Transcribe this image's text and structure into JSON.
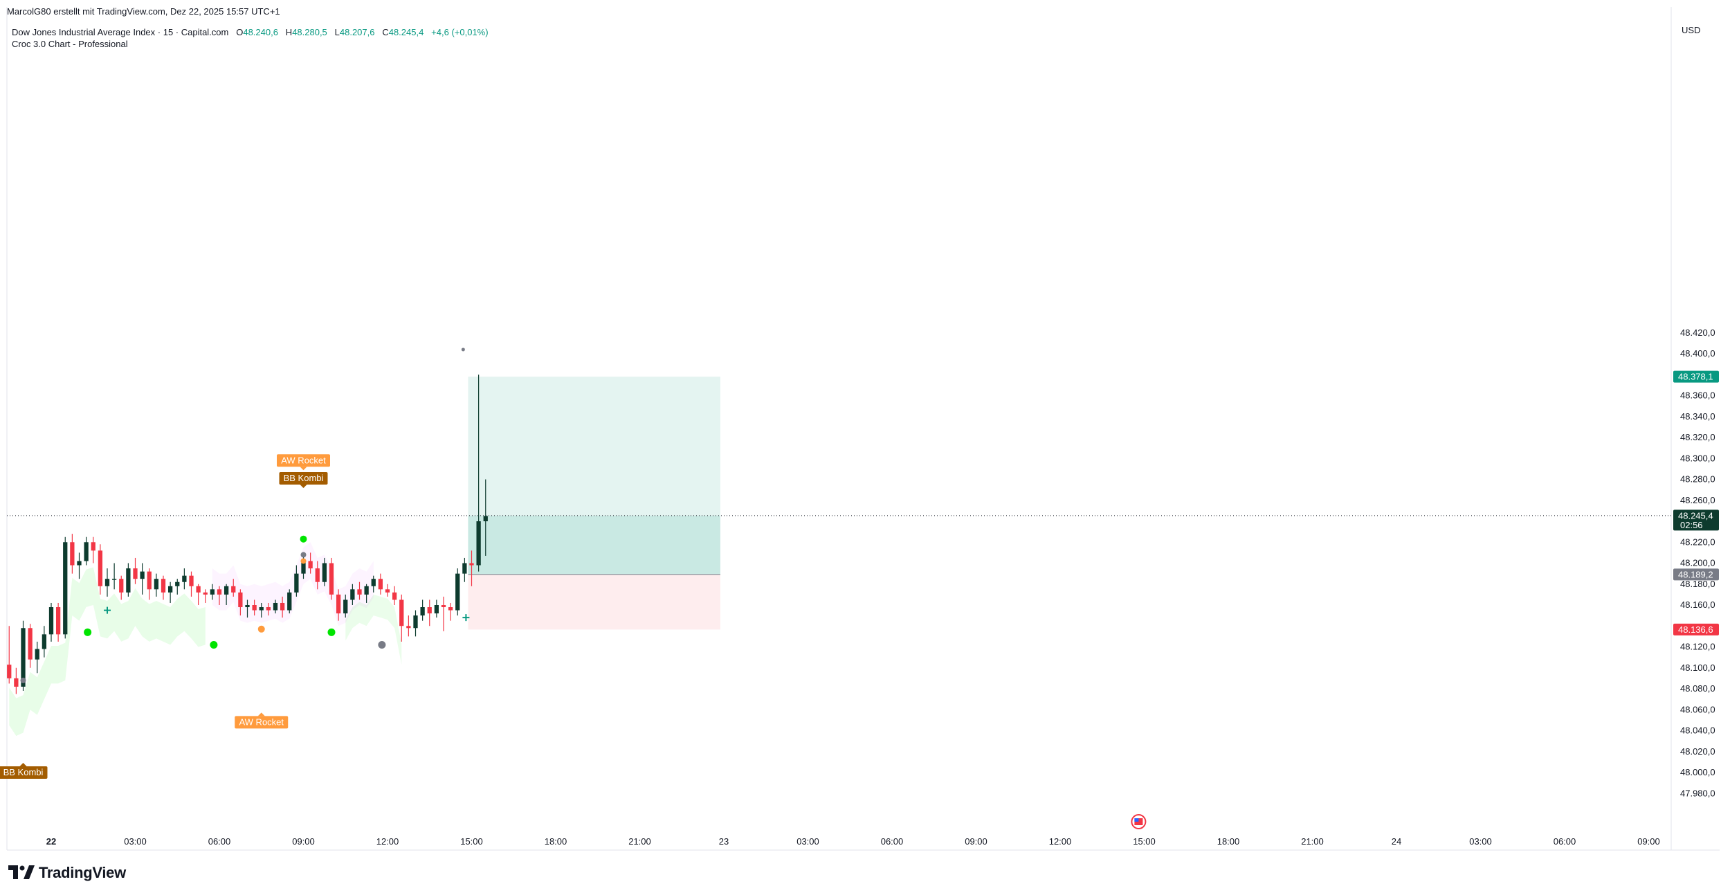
{
  "header": {
    "credit": "MarcolG80 erstellt mit TradingView.com, Dez 22, 2025 15:57 UTC+1"
  },
  "legend": {
    "symbol": "Dow Jones Industrial Average Index · 15 · Capital.com",
    "open_label": "O",
    "open": "48.240,6",
    "high_label": "H",
    "high": "48.280,5",
    "low_label": "L",
    "low": "48.207,6",
    "close_label": "C",
    "close": "48.245,4",
    "change": "+4,6 (+0,01%)",
    "indicator": "Croc 3.0 Chart - Professional"
  },
  "currency": "USD",
  "brand": "TradingView",
  "colors": {
    "up": "#0d3b2e",
    "down": "#f23645",
    "target": "#089981",
    "stop": "#f23645",
    "entry": "#787b86",
    "label_orange": "#ff9b3d",
    "label_brown": "#a35c00",
    "signal_green": "#00e400"
  },
  "chart_data": {
    "type": "candlestick",
    "title": "",
    "xlabel": "",
    "ylabel": "",
    "ylim": [
      47970,
      48430
    ],
    "y_ticks": [
      48420,
      48400,
      48360,
      48340,
      48320,
      48300,
      48280,
      48260,
      48220,
      48200,
      48180,
      48160,
      48120,
      48100,
      48080,
      48060,
      48040,
      48020,
      48000,
      47980
    ],
    "y_tick_labels": [
      "48.420,0",
      "48.400,0",
      "48.360,0",
      "48.340,0",
      "48.320,0",
      "48.300,0",
      "48.280,0",
      "48.260,0",
      "48.220,0",
      "48.200,0",
      "48.180,0",
      "48.160,0",
      "48.120,0",
      "48.100,0",
      "48.080,0",
      "48.060,0",
      "48.040,0",
      "48.020,0",
      "48.000,0",
      "47.980,0"
    ],
    "x_ticks": [
      {
        "t": 0,
        "label": "22",
        "bold": true
      },
      {
        "t": 3,
        "label": "03:00"
      },
      {
        "t": 6,
        "label": "06:00"
      },
      {
        "t": 9,
        "label": "09:00"
      },
      {
        "t": 12,
        "label": "12:00"
      },
      {
        "t": 15,
        "label": "15:00"
      },
      {
        "t": 18,
        "label": "18:00"
      },
      {
        "t": 21,
        "label": "21:00"
      },
      {
        "t": 24,
        "label": "23"
      },
      {
        "t": 27,
        "label": "03:00"
      },
      {
        "t": 30,
        "label": "06:00"
      },
      {
        "t": 33,
        "label": "09:00"
      },
      {
        "t": 36,
        "label": "12:00"
      },
      {
        "t": 39,
        "label": "15:00"
      },
      {
        "t": 42,
        "label": "18:00"
      },
      {
        "t": 45,
        "label": "21:00"
      },
      {
        "t": 48,
        "label": "24"
      },
      {
        "t": 51,
        "label": "03:00"
      },
      {
        "t": 54,
        "label": "06:00"
      },
      {
        "t": 57,
        "label": "09:00"
      }
    ],
    "candles_start_hour": -1.5,
    "candle_interval_hours": 0.25,
    "candles": [
      [
        48103,
        48140,
        48085,
        48090
      ],
      [
        48090,
        48100,
        48075,
        48082
      ],
      [
        48082,
        48145,
        48078,
        48138
      ],
      [
        48138,
        48142,
        48100,
        48108
      ],
      [
        48108,
        48125,
        48095,
        48118
      ],
      [
        48118,
        48140,
        48110,
        48132
      ],
      [
        48132,
        48162,
        48125,
        48158
      ],
      [
        48158,
        48162,
        48125,
        48132
      ],
      [
        48132,
        48225,
        48128,
        48220
      ],
      [
        48220,
        48228,
        48190,
        48198
      ],
      [
        48198,
        48210,
        48185,
        48202
      ],
      [
        48202,
        48225,
        48198,
        48220
      ],
      [
        48220,
        48225,
        48200,
        48212
      ],
      [
        48212,
        48218,
        48170,
        48178
      ],
      [
        48178,
        48195,
        48168,
        48185
      ],
      [
        48185,
        48200,
        48175,
        48185
      ],
      [
        48185,
        48188,
        48165,
        48172
      ],
      [
        48172,
        48200,
        48168,
        48195
      ],
      [
        48195,
        48205,
        48180,
        48185
      ],
      [
        48185,
        48200,
        48170,
        48192
      ],
      [
        48192,
        48195,
        48165,
        48175
      ],
      [
        48175,
        48190,
        48168,
        48185
      ],
      [
        48185,
        48188,
        48165,
        48172
      ],
      [
        48172,
        48182,
        48162,
        48178
      ],
      [
        48178,
        48185,
        48170,
        48182
      ],
      [
        48182,
        48195,
        48175,
        48188
      ],
      [
        48188,
        48192,
        48168,
        48178
      ],
      [
        48178,
        48180,
        48160,
        48172
      ],
      [
        48172,
        48175,
        48162,
        48170
      ],
      [
        48170,
        48180,
        48165,
        48175
      ],
      [
        48175,
        48178,
        48160,
        48170
      ],
      [
        48170,
        48180,
        48160,
        48178
      ],
      [
        48178,
        48185,
        48168,
        48172
      ],
      [
        48172,
        48175,
        48150,
        48158
      ],
      [
        48158,
        48165,
        48148,
        48160
      ],
      [
        48160,
        48165,
        48150,
        48155
      ],
      [
        48155,
        48162,
        48148,
        48158
      ],
      [
        48158,
        48162,
        48150,
        48155
      ],
      [
        48155,
        48165,
        48152,
        48162
      ],
      [
        48162,
        48168,
        48148,
        48155
      ],
      [
        48155,
        48175,
        48152,
        48172
      ],
      [
        48172,
        48198,
        48168,
        48190
      ],
      [
        48190,
        48208,
        48185,
        48202
      ],
      [
        48202,
        48210,
        48190,
        48195
      ],
      [
        48195,
        48202,
        48175,
        48182
      ],
      [
        48182,
        48205,
        48178,
        48200
      ],
      [
        48200,
        48205,
        48165,
        48170
      ],
      [
        48170,
        48175,
        48145,
        48152
      ],
      [
        48152,
        48170,
        48148,
        48165
      ],
      [
        48165,
        48180,
        48160,
        48175
      ],
      [
        48175,
        48182,
        48165,
        48170
      ],
      [
        48170,
        48180,
        48162,
        48178
      ],
      [
        48178,
        48188,
        48172,
        48185
      ],
      [
        48185,
        48190,
        48170,
        48175
      ],
      [
        48175,
        48180,
        48168,
        48172
      ],
      [
        48172,
        48178,
        48160,
        48165
      ],
      [
        48165,
        48170,
        48125,
        48140
      ],
      [
        48140,
        48150,
        48130,
        48138
      ],
      [
        48138,
        48155,
        48130,
        48150
      ],
      [
        48150,
        48165,
        48145,
        48158
      ],
      [
        48158,
        48165,
        48140,
        48152
      ],
      [
        48152,
        48165,
        48148,
        48160
      ],
      [
        48160,
        48168,
        48135,
        48158
      ],
      [
        48158,
        48162,
        48145,
        48155
      ],
      [
        48155,
        48195,
        48150,
        48190
      ],
      [
        48190,
        48205,
        48182,
        48200
      ],
      [
        48200,
        48212,
        48178,
        48198
      ],
      [
        48198,
        48380,
        48192,
        48240
      ],
      [
        48240,
        48280,
        48207,
        48245
      ]
    ],
    "position": {
      "start_hour": 14.875,
      "end_hour": 23.875,
      "target": 48378.1,
      "entry": 48189.2,
      "stop": 48136.6
    },
    "last_price": 48245.4,
    "last_price_label": "48.245,4",
    "countdown": "02:56",
    "price_labels": {
      "target": "48.378,1",
      "entry": "48.189,2",
      "stop": "48.136,6"
    },
    "annotations": [
      {
        "text": "AW Rocket",
        "hour": 9.0,
        "price": 48298,
        "style": "orange",
        "pointer": "down"
      },
      {
        "text": "BB Kombi",
        "hour": 9.0,
        "price": 48281,
        "style": "brown",
        "pointer": "down"
      },
      {
        "text": "AW Rocket",
        "hour": 7.5,
        "price": 48048,
        "style": "orange",
        "pointer": "up"
      },
      {
        "text": "BB Kombi",
        "hour": -1.0,
        "price": 48000,
        "style": "brown",
        "pointer": "up"
      }
    ]
  }
}
